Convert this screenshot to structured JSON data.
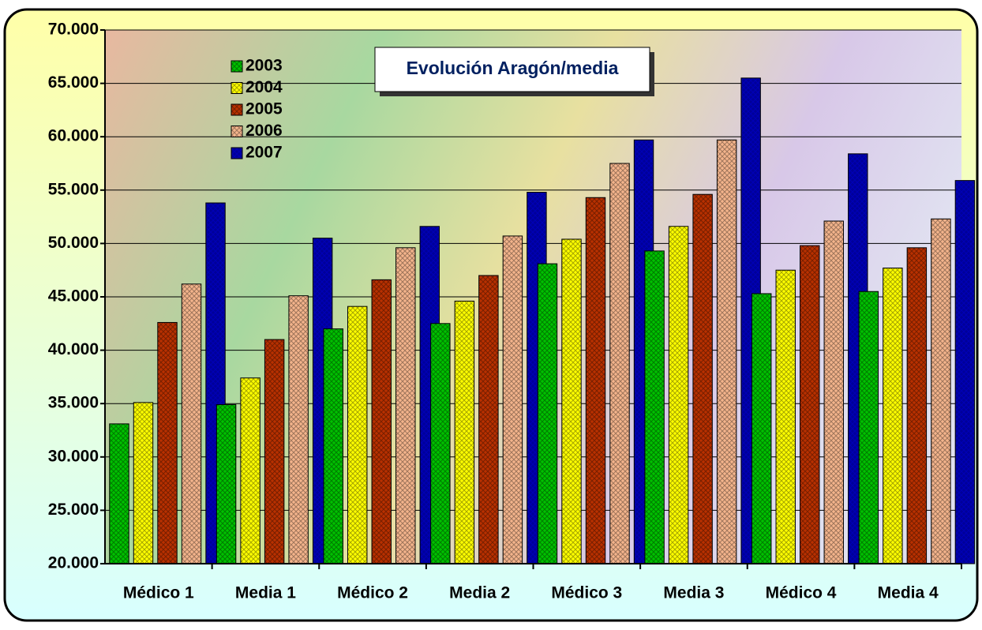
{
  "chart_data": {
    "type": "bar",
    "title": "Evolución Aragón/media",
    "categories": [
      "Médico 1",
      "Media 1",
      "Médico 2",
      "Media 2",
      "Médico 3",
      "Media 3",
      "Médico 4",
      "Media 4"
    ],
    "series": [
      {
        "name": "2003",
        "color": "#00c000",
        "values": [
          33100,
          34900,
          42000,
          42500,
          48100,
          49300,
          45300,
          45500
        ]
      },
      {
        "name": "2004",
        "color": "#ffff00",
        "values": [
          35100,
          37400,
          44100,
          44600,
          50400,
          51600,
          47500,
          47700
        ]
      },
      {
        "name": "2005",
        "color": "#b83000",
        "values": [
          42600,
          41000,
          46600,
          47000,
          54300,
          54600,
          49800,
          49600
        ]
      },
      {
        "name": "2006",
        "color": "#f4b48c",
        "values": [
          46200,
          45100,
          49600,
          50700,
          57500,
          59700,
          52100,
          52300
        ]
      },
      {
        "name": "2007",
        "color": "#000099",
        "values": [
          53800,
          50500,
          51600,
          54800,
          59700,
          65500,
          58400,
          55900
        ]
      }
    ],
    "ylim": [
      20000,
      70000
    ],
    "yticks": [
      {
        "value": 20000,
        "label": "20.000"
      },
      {
        "value": 25000,
        "label": "25.000"
      },
      {
        "value": 30000,
        "label": "30.000"
      },
      {
        "value": 35000,
        "label": "35.000"
      },
      {
        "value": 40000,
        "label": "40.000"
      },
      {
        "value": 45000,
        "label": "45.000"
      },
      {
        "value": 50000,
        "label": "50.000"
      },
      {
        "value": 55000,
        "label": "55.000"
      },
      {
        "value": 60000,
        "label": "60.000"
      },
      {
        "value": 65000,
        "label": "65.000"
      },
      {
        "value": 70000,
        "label": "70.000"
      }
    ],
    "grid": true,
    "legend_position": "upper-left"
  }
}
